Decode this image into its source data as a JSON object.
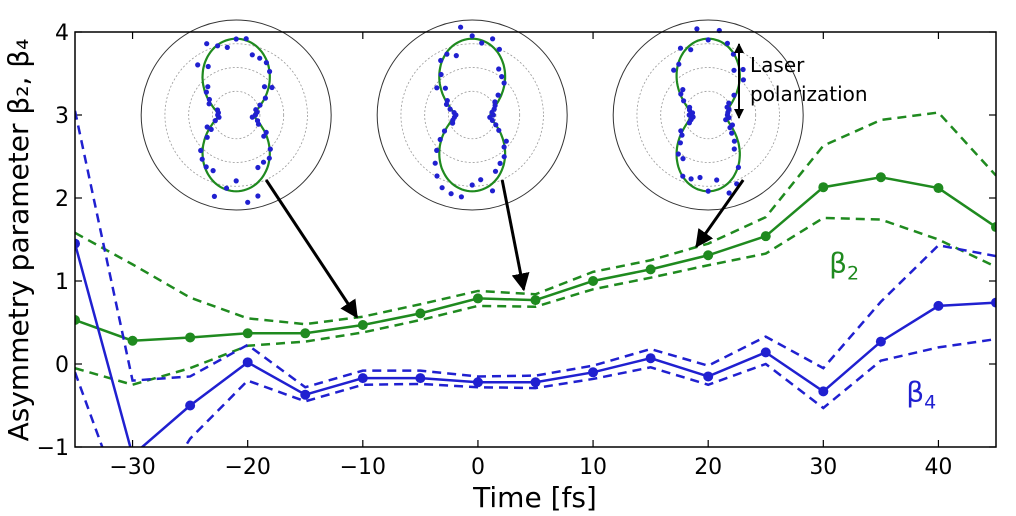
{
  "chart_data": {
    "type": "line",
    "xlabel": "Time [fs]",
    "ylabel": "Asymmetry parameter β₂, β₄",
    "xlim": [
      -35,
      45
    ],
    "ylim": [
      -1,
      4
    ],
    "xticks": [
      -30,
      -20,
      -10,
      0,
      10,
      20,
      30,
      40
    ],
    "xtick_labels": [
      "−30",
      "−20",
      "−10",
      "0",
      "10",
      "20",
      "30",
      "40"
    ],
    "yticks": [
      -1,
      0,
      1,
      2,
      3,
      4
    ],
    "ytick_labels": [
      "−1",
      "0",
      "1",
      "2",
      "3",
      "4"
    ],
    "grid": false,
    "series": [
      {
        "name": "β₂",
        "color": "#1f8a1f",
        "x": [
          -35,
          -30,
          -25,
          -20,
          -15,
          -10,
          -5,
          0,
          5,
          10,
          15,
          20,
          25,
          30,
          35,
          40,
          45
        ],
        "y": [
          0.53,
          0.28,
          0.32,
          0.37,
          0.37,
          0.47,
          0.61,
          0.79,
          0.77,
          1.0,
          1.14,
          1.31,
          1.54,
          2.13,
          2.25,
          2.12,
          1.65
        ],
        "upper": [
          1.58,
          1.2,
          0.8,
          0.55,
          0.48,
          0.57,
          0.72,
          0.88,
          0.84,
          1.11,
          1.25,
          1.45,
          1.77,
          2.63,
          2.94,
          3.03,
          2.27
        ],
        "lower": [
          -0.05,
          -0.25,
          -0.05,
          0.22,
          0.27,
          0.38,
          0.53,
          0.7,
          0.69,
          0.9,
          1.04,
          1.19,
          1.33,
          1.76,
          1.74,
          1.5,
          1.17
        ]
      },
      {
        "name": "β₄",
        "color": "#2020d0",
        "x": [
          -35,
          -30,
          -25,
          -20,
          -15,
          -10,
          -5,
          0,
          5,
          10,
          15,
          20,
          25,
          30,
          35,
          40,
          45
        ],
        "y": [
          1.45,
          -1.1,
          -0.5,
          0.02,
          -0.37,
          -0.17,
          -0.17,
          -0.22,
          -0.22,
          -0.1,
          0.07,
          -0.15,
          0.14,
          -0.33,
          0.27,
          0.7,
          0.74
        ],
        "upper": [
          3.05,
          -0.2,
          -0.15,
          0.23,
          -0.28,
          -0.08,
          -0.08,
          -0.15,
          -0.14,
          -0.02,
          0.18,
          -0.02,
          0.33,
          -0.05,
          0.75,
          1.43,
          1.3
        ],
        "lower": [
          -0.1,
          -2.0,
          -0.9,
          -0.2,
          -0.45,
          -0.25,
          -0.24,
          -0.28,
          -0.29,
          -0.18,
          -0.04,
          -0.25,
          0.0,
          -0.53,
          0.04,
          0.2,
          0.3
        ]
      }
    ],
    "series_labels": [
      {
        "text": "β",
        "sub": "2",
        "color": "#1f8a1f",
        "x": 30.5,
        "y": 1.1
      },
      {
        "text": "β",
        "sub": "4",
        "color": "#2020d0",
        "x": 37.2,
        "y": -0.45
      }
    ],
    "annotation": {
      "line1": "Laser",
      "line2": "polarization"
    },
    "insets": [
      {
        "name": "polar-inset-1",
        "cx": -21,
        "cy": 3.0,
        "lobe_width": 0.62,
        "arrow_to": [
          -10,
          0.47
        ]
      },
      {
        "name": "polar-inset-2",
        "cx": -0.5,
        "cy": 3.0,
        "lobe_width": 0.55,
        "arrow_to": [
          4.5,
          0.8
        ]
      },
      {
        "name": "polar-inset-3",
        "cx": 20,
        "cy": 3.0,
        "lobe_width": 0.38,
        "arrow_to": [
          19.5,
          1.32
        ]
      }
    ]
  }
}
